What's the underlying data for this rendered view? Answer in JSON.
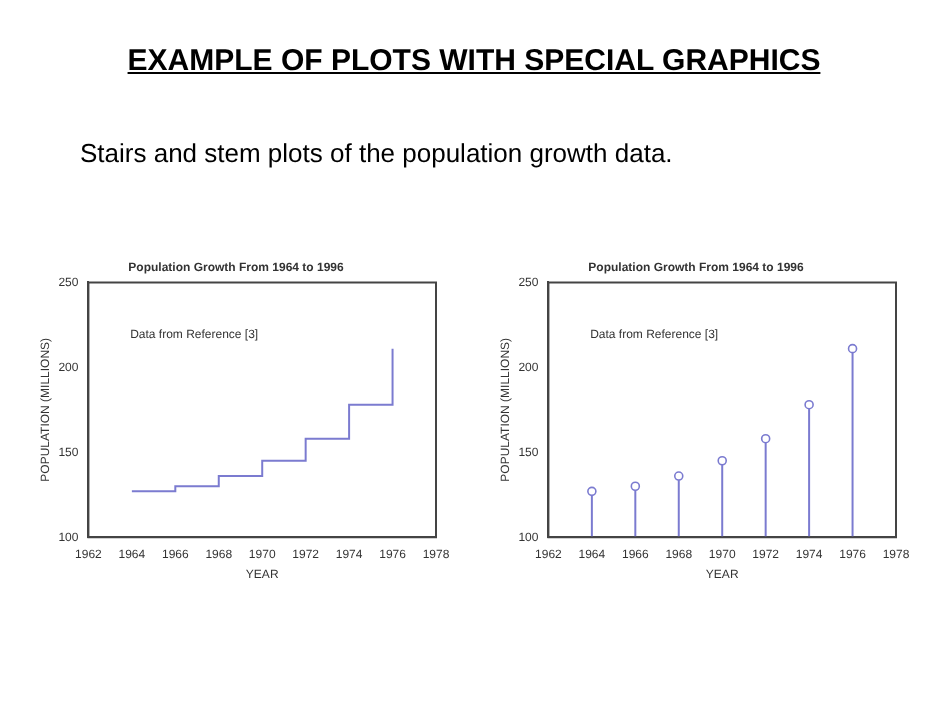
{
  "chart_data": [
    {
      "type": "other",
      "title": "EXAMPLE OF PLOTS WITH SPECIAL GRAPHICS",
      "subtitle": "Stairs and stem plots of the population growth data."
    },
    {
      "type": "step",
      "title": "Population Growth From 1964 to 1996",
      "xlabel": "YEAR",
      "ylabel": "POPULATION (MILLIONS)",
      "annotations": [
        "Data from Reference [3]"
      ],
      "x": [
        1964,
        1966,
        1968,
        1970,
        1972,
        1974,
        1976
      ],
      "series": [
        {
          "color": "#7b7bd0",
          "values": [
            127,
            130,
            136,
            145,
            158,
            178,
            211
          ]
        }
      ],
      "xlim": [
        1962,
        1978
      ],
      "xticks": [
        1962,
        1964,
        1966,
        1968,
        1970,
        1972,
        1974,
        1976,
        1978
      ],
      "ylim": [
        100,
        250
      ],
      "yticks": [
        100,
        150,
        200,
        250
      ],
      "grid": false,
      "legend": false
    },
    {
      "type": "lollipop",
      "title": "Population Growth From 1964 to 1996",
      "xlabel": "YEAR",
      "ylabel": "POPULATION (MILLIONS)",
      "annotations": [
        "Data from Reference [3]"
      ],
      "x": [
        1964,
        1966,
        1968,
        1970,
        1972,
        1974,
        1976
      ],
      "series": [
        {
          "color": "#7b7bd0",
          "values": [
            127,
            130,
            136,
            145,
            158,
            178,
            211
          ]
        }
      ],
      "xlim": [
        1962,
        1978
      ],
      "xticks": [
        1962,
        1964,
        1966,
        1968,
        1970,
        1972,
        1974,
        1976,
        1978
      ],
      "ylim": [
        100,
        250
      ],
      "yticks": [
        100,
        150,
        200,
        250
      ],
      "grid": false,
      "legend": false,
      "marker": "circle"
    }
  ]
}
